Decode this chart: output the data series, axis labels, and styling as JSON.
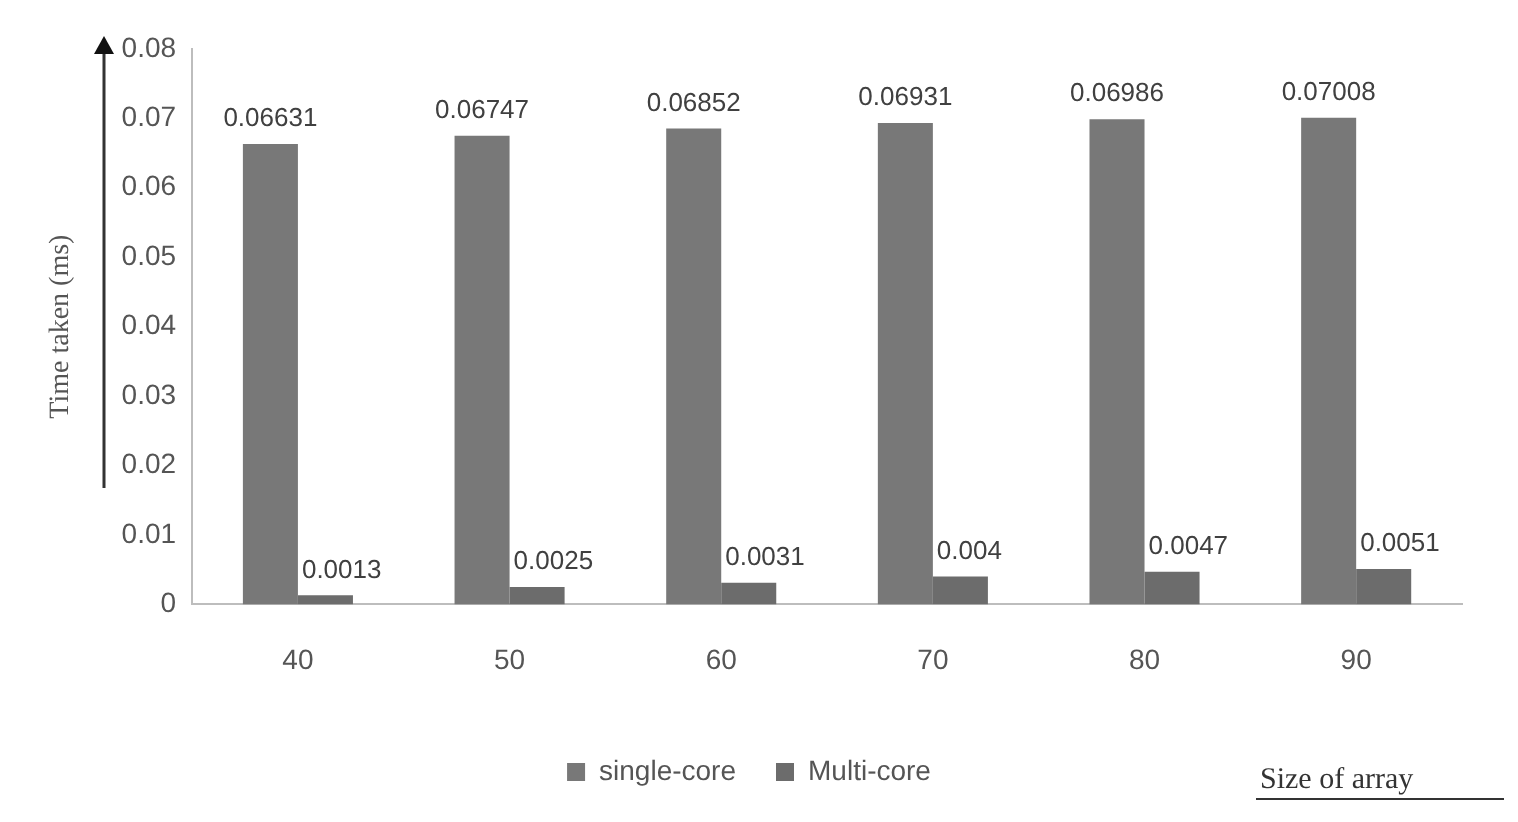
{
  "chart_data": {
    "type": "bar",
    "xlabel": "Size of array",
    "ylabel": "Time taken (ms)",
    "categories": [
      "40",
      "50",
      "60",
      "70",
      "80",
      "90"
    ],
    "series": [
      {
        "name": "single-core",
        "color": "#787878",
        "values": [
          0.06631,
          0.06747,
          0.06852,
          0.06931,
          0.06986,
          0.07008
        ]
      },
      {
        "name": "Multi-core",
        "color": "#6c6c6c",
        "values": [
          0.0013,
          0.0025,
          0.0031,
          0.004,
          0.0047,
          0.0051
        ]
      }
    ],
    "ylim": [
      0,
      0.08
    ],
    "yticks": [
      0,
      0.01,
      0.02,
      0.03,
      0.04,
      0.05,
      0.06,
      0.07,
      0.08
    ],
    "grid": false,
    "legend": "bottom",
    "data_labels": true
  }
}
